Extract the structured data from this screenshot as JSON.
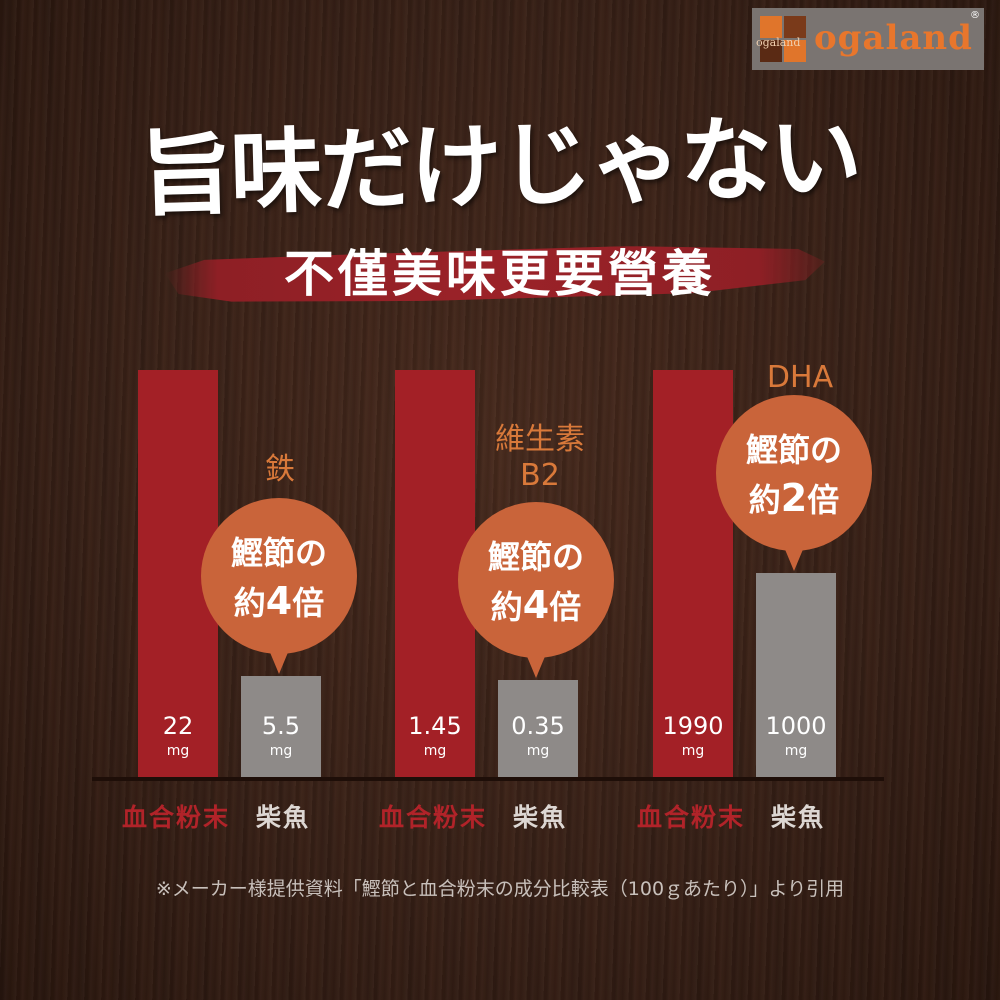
{
  "logo": {
    "small": "ogaland",
    "text": "ogaland",
    "reg": "®"
  },
  "title": "旨味だけじゃない",
  "subtitle": "不僅美味更要營養",
  "chart_data": {
    "type": "bar",
    "groups": [
      {
        "nutrient": "鉄",
        "comparison": {
          "line1": "鰹節の",
          "prefix": "約",
          "multiplier": "4",
          "suffix": "倍"
        },
        "series": [
          {
            "name": "血合粉末",
            "value": 22,
            "label": "22",
            "unit": "mg"
          },
          {
            "name": "柴魚",
            "value": 5.5,
            "label": "5.5",
            "unit": "mg"
          }
        ]
      },
      {
        "nutrient": "維生素\nB2",
        "comparison": {
          "line1": "鰹節の",
          "prefix": "約",
          "multiplier": "4",
          "suffix": "倍"
        },
        "series": [
          {
            "name": "血合粉末",
            "value": 1.45,
            "label": "1.45",
            "unit": "mg"
          },
          {
            "name": "柴魚",
            "value": 0.35,
            "label": "0.35",
            "unit": "mg"
          }
        ]
      },
      {
        "nutrient": "DHA",
        "comparison": {
          "line1": "鰹節の",
          "prefix": "約",
          "multiplier": "2",
          "suffix": "倍"
        },
        "series": [
          {
            "name": "血合粉末",
            "value": 1990,
            "label": "1990",
            "unit": "mg"
          },
          {
            "name": "柴魚",
            "value": 1000,
            "label": "1000",
            "unit": "mg"
          }
        ]
      }
    ],
    "colors": {
      "血合粉末": "#a32026",
      "柴魚": "#8e8a88",
      "bubble": "#c9643a",
      "nutrient_label": "#d9793a"
    }
  },
  "footnote": "※メーカー様提供資料「鰹節と血合粉末の成分比較表（100ｇあたり）」より引用"
}
